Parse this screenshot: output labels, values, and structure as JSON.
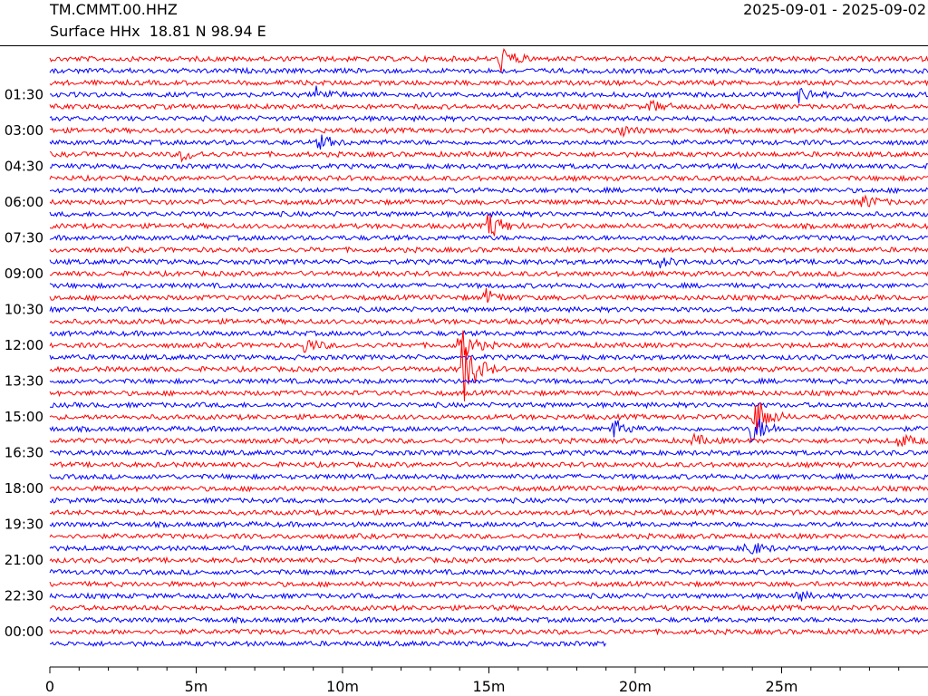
{
  "header": {
    "station": "TM.CMMT.00.HHZ",
    "subtitle": "Surface HHx  18.81 N 98.94 E",
    "date_range": "2025-09-01 - 2025-09-02"
  },
  "chart_data": {
    "type": "helicorder",
    "title": "TM.CMMT.00.HHZ",
    "subtitle": "Surface HHx  18.81 N 98.94 E",
    "date_range": "2025-09-01 - 2025-09-02",
    "xlabel": "",
    "ylabel": "",
    "x_unit": "minutes",
    "xlim": [
      0,
      30
    ],
    "x_ticks": [
      0,
      5,
      10,
      15,
      20,
      25
    ],
    "x_tick_labels": [
      "0",
      "5m",
      "10m",
      "15m",
      "20m",
      "25m"
    ],
    "x_minor_tick_step_minutes": 1,
    "line_duration_minutes": 30,
    "line_count": 50,
    "last_line_end_minutes": 19,
    "y_tick_labels": [
      "01:30",
      "03:00",
      "04:30",
      "06:00",
      "07:30",
      "09:00",
      "10:30",
      "12:00",
      "13:30",
      "15:00",
      "16:30",
      "18:00",
      "19:30",
      "21:00",
      "22:30",
      "00:00"
    ],
    "y_tick_line_indexes": [
      3,
      6,
      9,
      12,
      15,
      18,
      21,
      24,
      27,
      30,
      33,
      36,
      39,
      42,
      45,
      48
    ],
    "colors": [
      "#ff0000",
      "#0000ff"
    ],
    "grid": false,
    "events": [
      {
        "line": 0,
        "minute": 15.4,
        "amplitude": 14
      },
      {
        "line": 3,
        "minute": 9.1,
        "amplitude": 8
      },
      {
        "line": 3,
        "minute": 25.6,
        "amplitude": 8
      },
      {
        "line": 4,
        "minute": 20.5,
        "amplitude": 6
      },
      {
        "line": 6,
        "minute": 19.4,
        "amplitude": 7
      },
      {
        "line": 7,
        "minute": 9.2,
        "amplitude": 8
      },
      {
        "line": 8,
        "minute": 4.5,
        "amplitude": 6
      },
      {
        "line": 12,
        "minute": 27.8,
        "amplitude": 8
      },
      {
        "line": 14,
        "minute": 15.0,
        "amplitude": 16
      },
      {
        "line": 17,
        "minute": 20.8,
        "amplitude": 6
      },
      {
        "line": 20,
        "minute": 14.9,
        "amplitude": 8
      },
      {
        "line": 24,
        "minute": 8.7,
        "amplitude": 8
      },
      {
        "line": 24,
        "minute": 14.0,
        "amplitude": 20
      },
      {
        "line": 26,
        "minute": 14.1,
        "amplitude": 40
      },
      {
        "line": 30,
        "minute": 24.1,
        "amplitude": 24
      },
      {
        "line": 31,
        "minute": 19.2,
        "amplitude": 12
      },
      {
        "line": 31,
        "minute": 24.0,
        "amplitude": 18
      },
      {
        "line": 32,
        "minute": 22.0,
        "amplitude": 6
      },
      {
        "line": 32,
        "minute": 29.0,
        "amplitude": 8
      },
      {
        "line": 41,
        "minute": 23.8,
        "amplitude": 10
      },
      {
        "line": 45,
        "minute": 25.5,
        "amplitude": 5
      }
    ]
  }
}
